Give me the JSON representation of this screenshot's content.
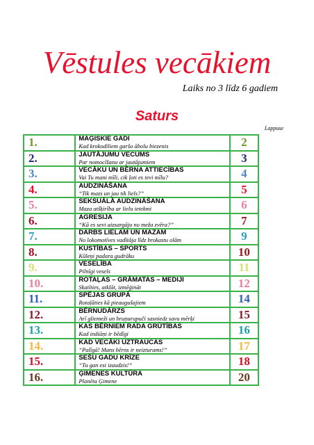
{
  "header": {
    "title": "Vēstules vecākiem",
    "subtitle": "Laiks no 3 līdz 6 gadiem"
  },
  "contents": {
    "heading": "Saturs",
    "page_label": "Lappuse",
    "entries": [
      {
        "number": "1.",
        "title": "MAĢISKIE GADI",
        "subtitle": "Kad krokodiliem garšo ābolu biezenis",
        "page": 2,
        "color": "#6c9a2a"
      },
      {
        "number": "2.",
        "title": "JAUTĀJUMU VECUMS",
        "subtitle": "Par nomocīšanu ar jautājumiem",
        "page": 3,
        "color": "#1f2a78"
      },
      {
        "number": "3.",
        "title": "VECĀKU UN BĒRNA ATTIECĪBAS",
        "subtitle": "Vai Tu mani mīli, cik ļoti es tevi mīlu?",
        "page": 4,
        "color": "#4f86c6"
      },
      {
        "number": "4.",
        "title": "AUDZINĀŠANA",
        "subtitle": "“Tik mazs un jau tik liels?”",
        "page": 5,
        "color": "#e8112d"
      },
      {
        "number": "5.",
        "title": "SEKSUĀLĀ AUDZINĀŠANA",
        "subtitle": "Maza atšķirība ar lielu ietekmi",
        "page": 6,
        "color": "#e87fa8"
      },
      {
        "number": "6.",
        "title": "AGRESIJA",
        "subtitle": "“Kā es sevi aizsargāju no meža zvēra?”",
        "page": 7,
        "color": "#a5132a"
      },
      {
        "number": "7.",
        "title": "DARBS LIELAM UN MAZAM",
        "subtitle": "No lokomotīves vadītāja līdz brokastu olām",
        "page": 9,
        "color": "#2a9fc4"
      },
      {
        "number": "8.",
        "title": "KUSTĪBAS – SPORTS",
        "subtitle": "Kūleņi padara gudrāku",
        "page": 10,
        "color": "#9e1520"
      },
      {
        "number": "9.",
        "title": "VESELĪBA",
        "subtitle": "Pilnīgi vesels",
        "page": 11,
        "color": "#d7df7a"
      },
      {
        "number": "10.",
        "title": "ROTAĻAS – GRĀMATAS – MEDIJI",
        "subtitle": "Skatīties, atklāt, izmēģināt",
        "page": 12,
        "color": "#e87f9e"
      },
      {
        "number": "11.",
        "title": "SPĒJAS GRUPĀ",
        "subtitle": "Rotaļāties kā pieaugušajiem",
        "page": 14,
        "color": "#2f5fb3"
      },
      {
        "number": "12.",
        "title": "BĒRNUDĀRZS",
        "subtitle": "Arī gliemeži un bruņurupuči sasniedz savu mērķi",
        "page": 15,
        "color": "#8a1a2a"
      },
      {
        "number": "13.",
        "title": "KAS BĒRNIEM RADA GRŪTĪBAS",
        "subtitle": "Kad indiāņi ir bēdīgi",
        "page": 16,
        "color": "#1aa0a8"
      },
      {
        "number": "14.",
        "title": "KAD VECĀKI UZTRAUCAS",
        "subtitle": "“Palīgā! Mans bērns ir neizturams!”",
        "page": 17,
        "color": "#f5b73c"
      },
      {
        "number": "15.",
        "title": "SEŠU GADU KRĪZE",
        "subtitle": "“Tu gan esi izaudzis!”",
        "page": 18,
        "color": "#d8102a"
      },
      {
        "number": "16.",
        "title": "ĢIMENES KULTŪRA",
        "subtitle": "Planēta Ģimene",
        "page": 20,
        "color": "#6b3a1e"
      }
    ]
  }
}
